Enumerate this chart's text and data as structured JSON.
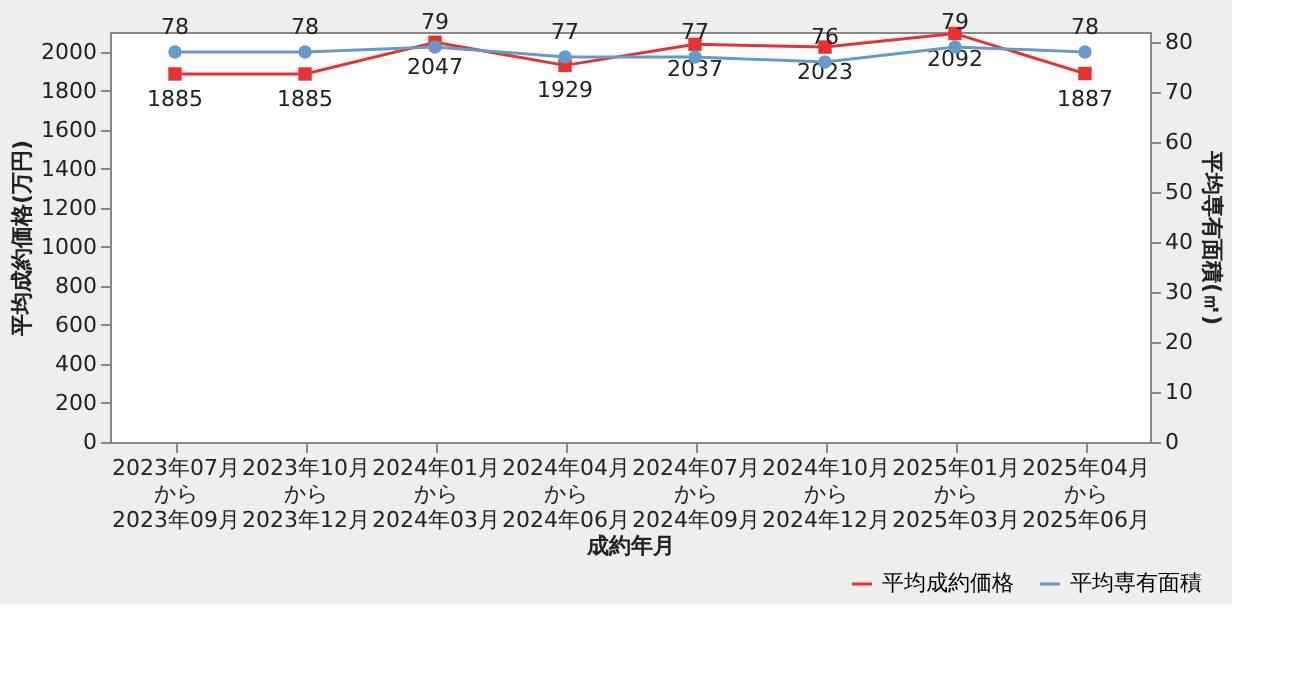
{
  "chart_data": {
    "type": "line",
    "xlabel": "成約年月",
    "ylabel": "平均成約価格(万円)",
    "y2label": "平均専有面積(㎡)",
    "categories": [
      "2023年07月から2023年09月",
      "2023年10月から2023年12月",
      "2024年01月から2024年03月",
      "2024年04月から2024年06月",
      "2024年07月から2024年09月",
      "2024年10月から2024年12月",
      "2025年01月から2025年03月",
      "2025年04月から2025年06月"
    ],
    "series": [
      {
        "name": "平均成約価格",
        "color": "#e8322f",
        "marker": "square",
        "values": [
          1885,
          1885,
          2047,
          1929,
          2037,
          2023,
          2092,
          1887
        ]
      },
      {
        "name": "平均専有面積",
        "color": "#6699cc",
        "marker": "circle",
        "axis": "y2",
        "values": [
          78,
          78,
          79,
          77,
          77,
          76,
          79,
          78
        ]
      }
    ],
    "ylim": [
      0,
      2100
    ],
    "yticks": [
      0,
      200,
      400,
      600,
      800,
      1000,
      1200,
      1400,
      1600,
      1800,
      2000
    ],
    "y2lim": [
      0,
      82
    ],
    "y2ticks": [
      0,
      10,
      20,
      30,
      40,
      50,
      60,
      70,
      80
    ],
    "data_labels": true,
    "grid": false,
    "legend": "bottom right"
  }
}
